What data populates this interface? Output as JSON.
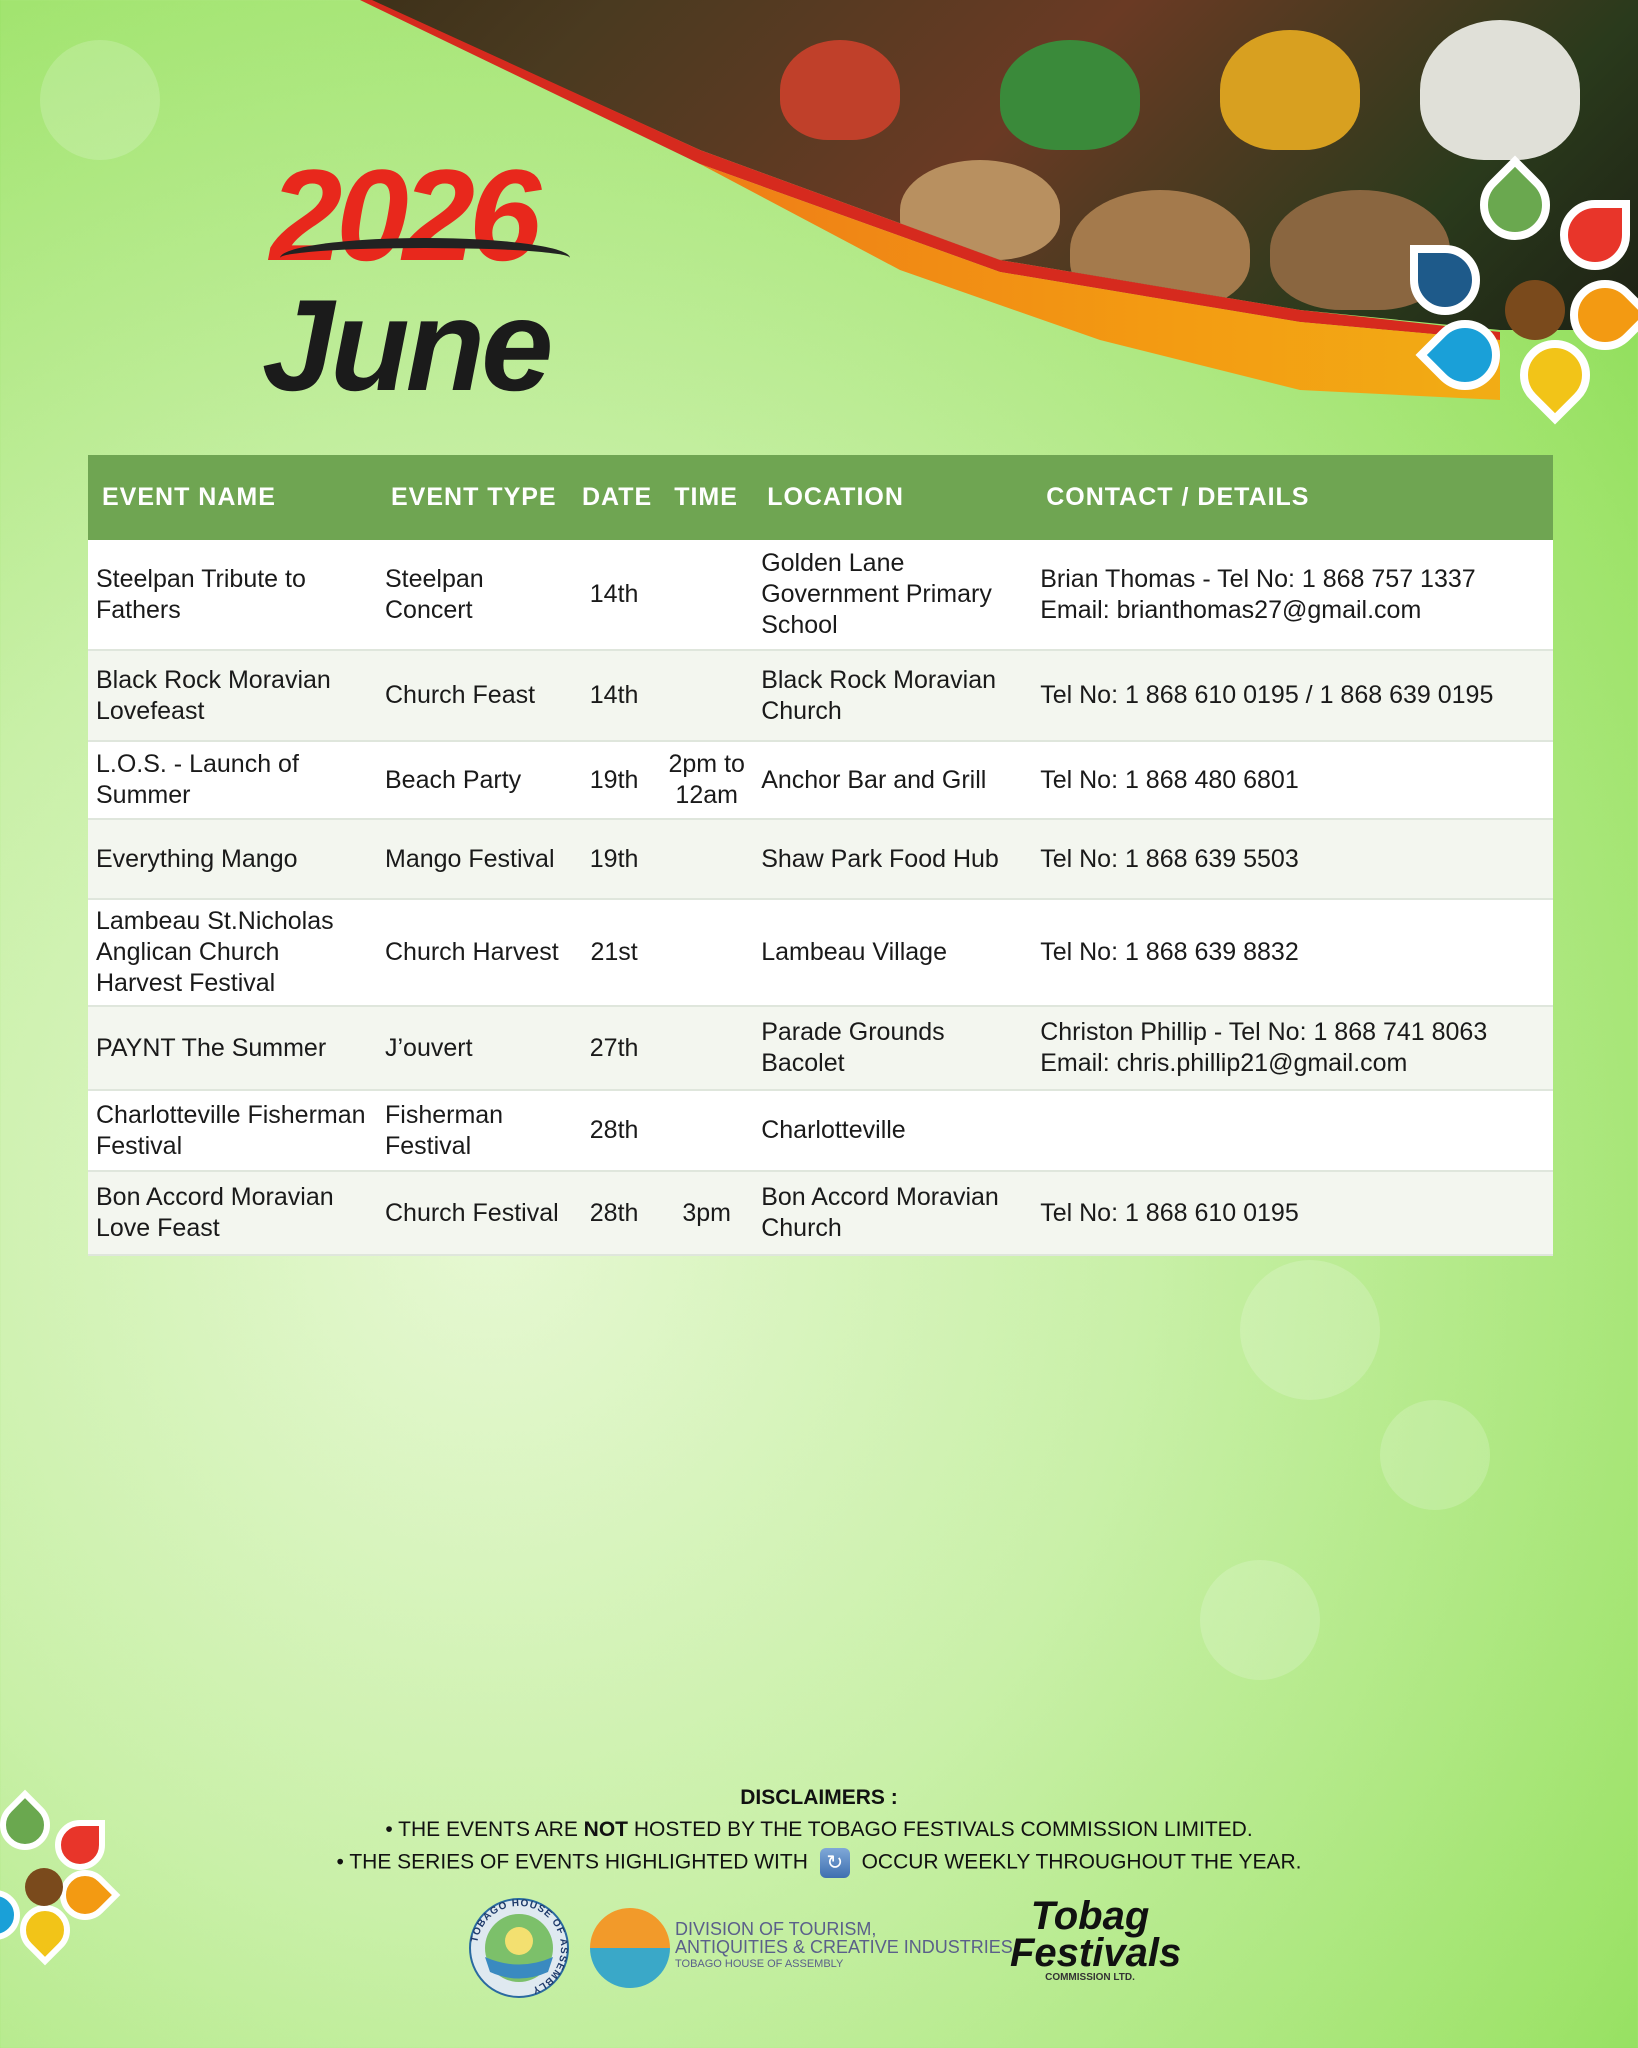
{
  "header": {
    "year": "2026",
    "month": "June"
  },
  "table": {
    "columns": [
      "EVENT NAME",
      "EVENT TYPE",
      "DATE",
      "TIME",
      "LOCATION",
      "CONTACT / DETAILS"
    ],
    "rows": [
      {
        "name": "Steelpan Tribute to Fathers",
        "type": "Steelpan Concert",
        "date": "14th",
        "time": "",
        "location": "Golden Lane Government Primary School",
        "contact": "Brian Thomas - Tel No: 1 868 757 1337",
        "contact2": "Email: brianthomas27@gmail.com"
      },
      {
        "name": "Black Rock Moravian Lovefeast",
        "type": "Church Feast",
        "date": "14th",
        "time": "",
        "location": "Black Rock Moravian Church",
        "contact": "Tel No: 1 868 610 0195 / 1 868 639 0195",
        "contact2": ""
      },
      {
        "name": "L.O.S. - Launch of Summer",
        "type": "Beach Party",
        "date": "19th",
        "time": "2pm to 12am",
        "location": "Anchor Bar and Grill",
        "contact": "Tel No: 1 868 480 6801",
        "contact2": ""
      },
      {
        "name": "Everything Mango",
        "type": "Mango Festival",
        "date": "19th",
        "time": "",
        "location": "Shaw Park Food Hub",
        "contact": "Tel No: 1 868 639 5503",
        "contact2": ""
      },
      {
        "name": "Lambeau St.Nicholas Anglican Church Harvest Festival",
        "type": "Church Harvest",
        "date": "21st",
        "time": "",
        "location": "Lambeau Village",
        "contact": "Tel No: 1 868 639 8832",
        "contact2": ""
      },
      {
        "name": "PAYNT The Summer",
        "type": "J’ouvert",
        "date": "27th",
        "time": "",
        "location": "Parade Grounds Bacolet",
        "contact": "Christon Phillip - Tel No: 1 868 741 8063",
        "contact2": "Email: chris.phillip21@gmail.com"
      },
      {
        "name": "Charlotteville Fisherman Festival",
        "type": "Fisherman Festival",
        "date": "28th",
        "time": "",
        "location": "Charlotteville",
        "contact": "",
        "contact2": ""
      },
      {
        "name": "Bon Accord Moravian Love Feast",
        "type": "Church Festival",
        "date": "28th",
        "time": "3pm",
        "location": "Bon Accord Moravian Church",
        "contact": "Tel No: 1 868 610 0195",
        "contact2": ""
      }
    ]
  },
  "disclaimers": {
    "title": "DISCLAIMERS :",
    "line1_pre": "• THE EVENTS ARE ",
    "line1_bold": "NOT",
    "line1_post": " HOSTED BY THE TOBAGO FESTIVALS COMMISSION LIMITED.",
    "line2_pre": "• THE SERIES OF EVENTS HIGHLIGHTED WITH",
    "line2_icon": "repeat-icon",
    "line2_post": "OCCUR WEEKLY THROUGHOUT THE YEAR."
  },
  "logos": {
    "tha": "TOBAGO HOUSE OF ASSEMBLY",
    "division_line1": "DIVISION OF TOURISM,",
    "division_line2": "ANTIQUITIES & CREATIVE INDUSTRIES",
    "division_line3": "TOBAGO HOUSE OF ASSEMBLY",
    "tfc_line1": "Tobag",
    "tfc_line2": "Festivals",
    "tfc_line3": "COMMISSION LTD."
  },
  "colors": {
    "header_green": "#6fa552",
    "year_red": "#e8281c",
    "stripe_orange": "#f39a12"
  }
}
